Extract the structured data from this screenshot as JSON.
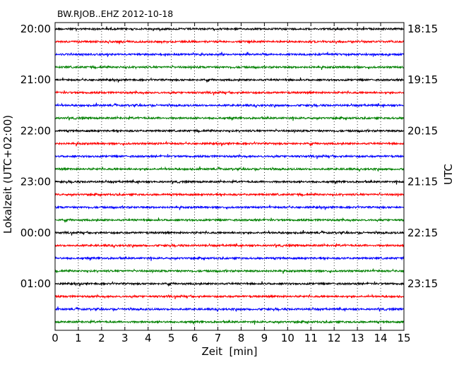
{
  "chart_data": {
    "type": "line",
    "title": "BW.RJOB..EHZ 2012-10-18",
    "xlabel": "Zeit  [min]",
    "ylabel_left": "Lokalzeit (UTC+02:00)",
    "ylabel_right": "UTC",
    "xlim": [
      0,
      15
    ],
    "xticks": [
      "0",
      "1",
      "2",
      "3",
      "4",
      "5",
      "6",
      "7",
      "8",
      "9",
      "10",
      "11",
      "12",
      "13",
      "14",
      "15"
    ],
    "rows": 24,
    "row_minutes": 15,
    "left_tick_labels": [
      "20:00",
      "21:00",
      "22:00",
      "23:00",
      "00:00",
      "01:00"
    ],
    "right_tick_labels": [
      "18:15",
      "19:15",
      "20:15",
      "21:15",
      "22:15",
      "23:15"
    ],
    "label_every_rows": 4,
    "grid_x": "dotted vertical at every minute",
    "series_colors": [
      "#000000",
      "#ff0000",
      "#0000ff",
      "#008000"
    ],
    "series": [
      {
        "row_start": "20:00",
        "color_index": 0
      },
      {
        "row_start": "20:15",
        "color_index": 1
      },
      {
        "row_start": "20:30",
        "color_index": 2
      },
      {
        "row_start": "20:45",
        "color_index": 3
      },
      {
        "row_start": "21:00",
        "color_index": 0
      },
      {
        "row_start": "21:15",
        "color_index": 1
      },
      {
        "row_start": "21:30",
        "color_index": 2
      },
      {
        "row_start": "21:45",
        "color_index": 3
      },
      {
        "row_start": "22:00",
        "color_index": 0
      },
      {
        "row_start": "22:15",
        "color_index": 1
      },
      {
        "row_start": "22:30",
        "color_index": 2
      },
      {
        "row_start": "22:45",
        "color_index": 3
      },
      {
        "row_start": "23:00",
        "color_index": 0
      },
      {
        "row_start": "23:15",
        "color_index": 1
      },
      {
        "row_start": "23:30",
        "color_index": 2
      },
      {
        "row_start": "23:45",
        "color_index": 3
      },
      {
        "row_start": "00:00",
        "color_index": 0
      },
      {
        "row_start": "00:15",
        "color_index": 1
      },
      {
        "row_start": "00:30",
        "color_index": 2
      },
      {
        "row_start": "00:45",
        "color_index": 3
      },
      {
        "row_start": "01:00",
        "color_index": 0
      },
      {
        "row_start": "01:15",
        "color_index": 1
      },
      {
        "row_start": "01:30",
        "color_index": 2
      },
      {
        "row_start": "01:45",
        "color_index": 3
      }
    ]
  }
}
